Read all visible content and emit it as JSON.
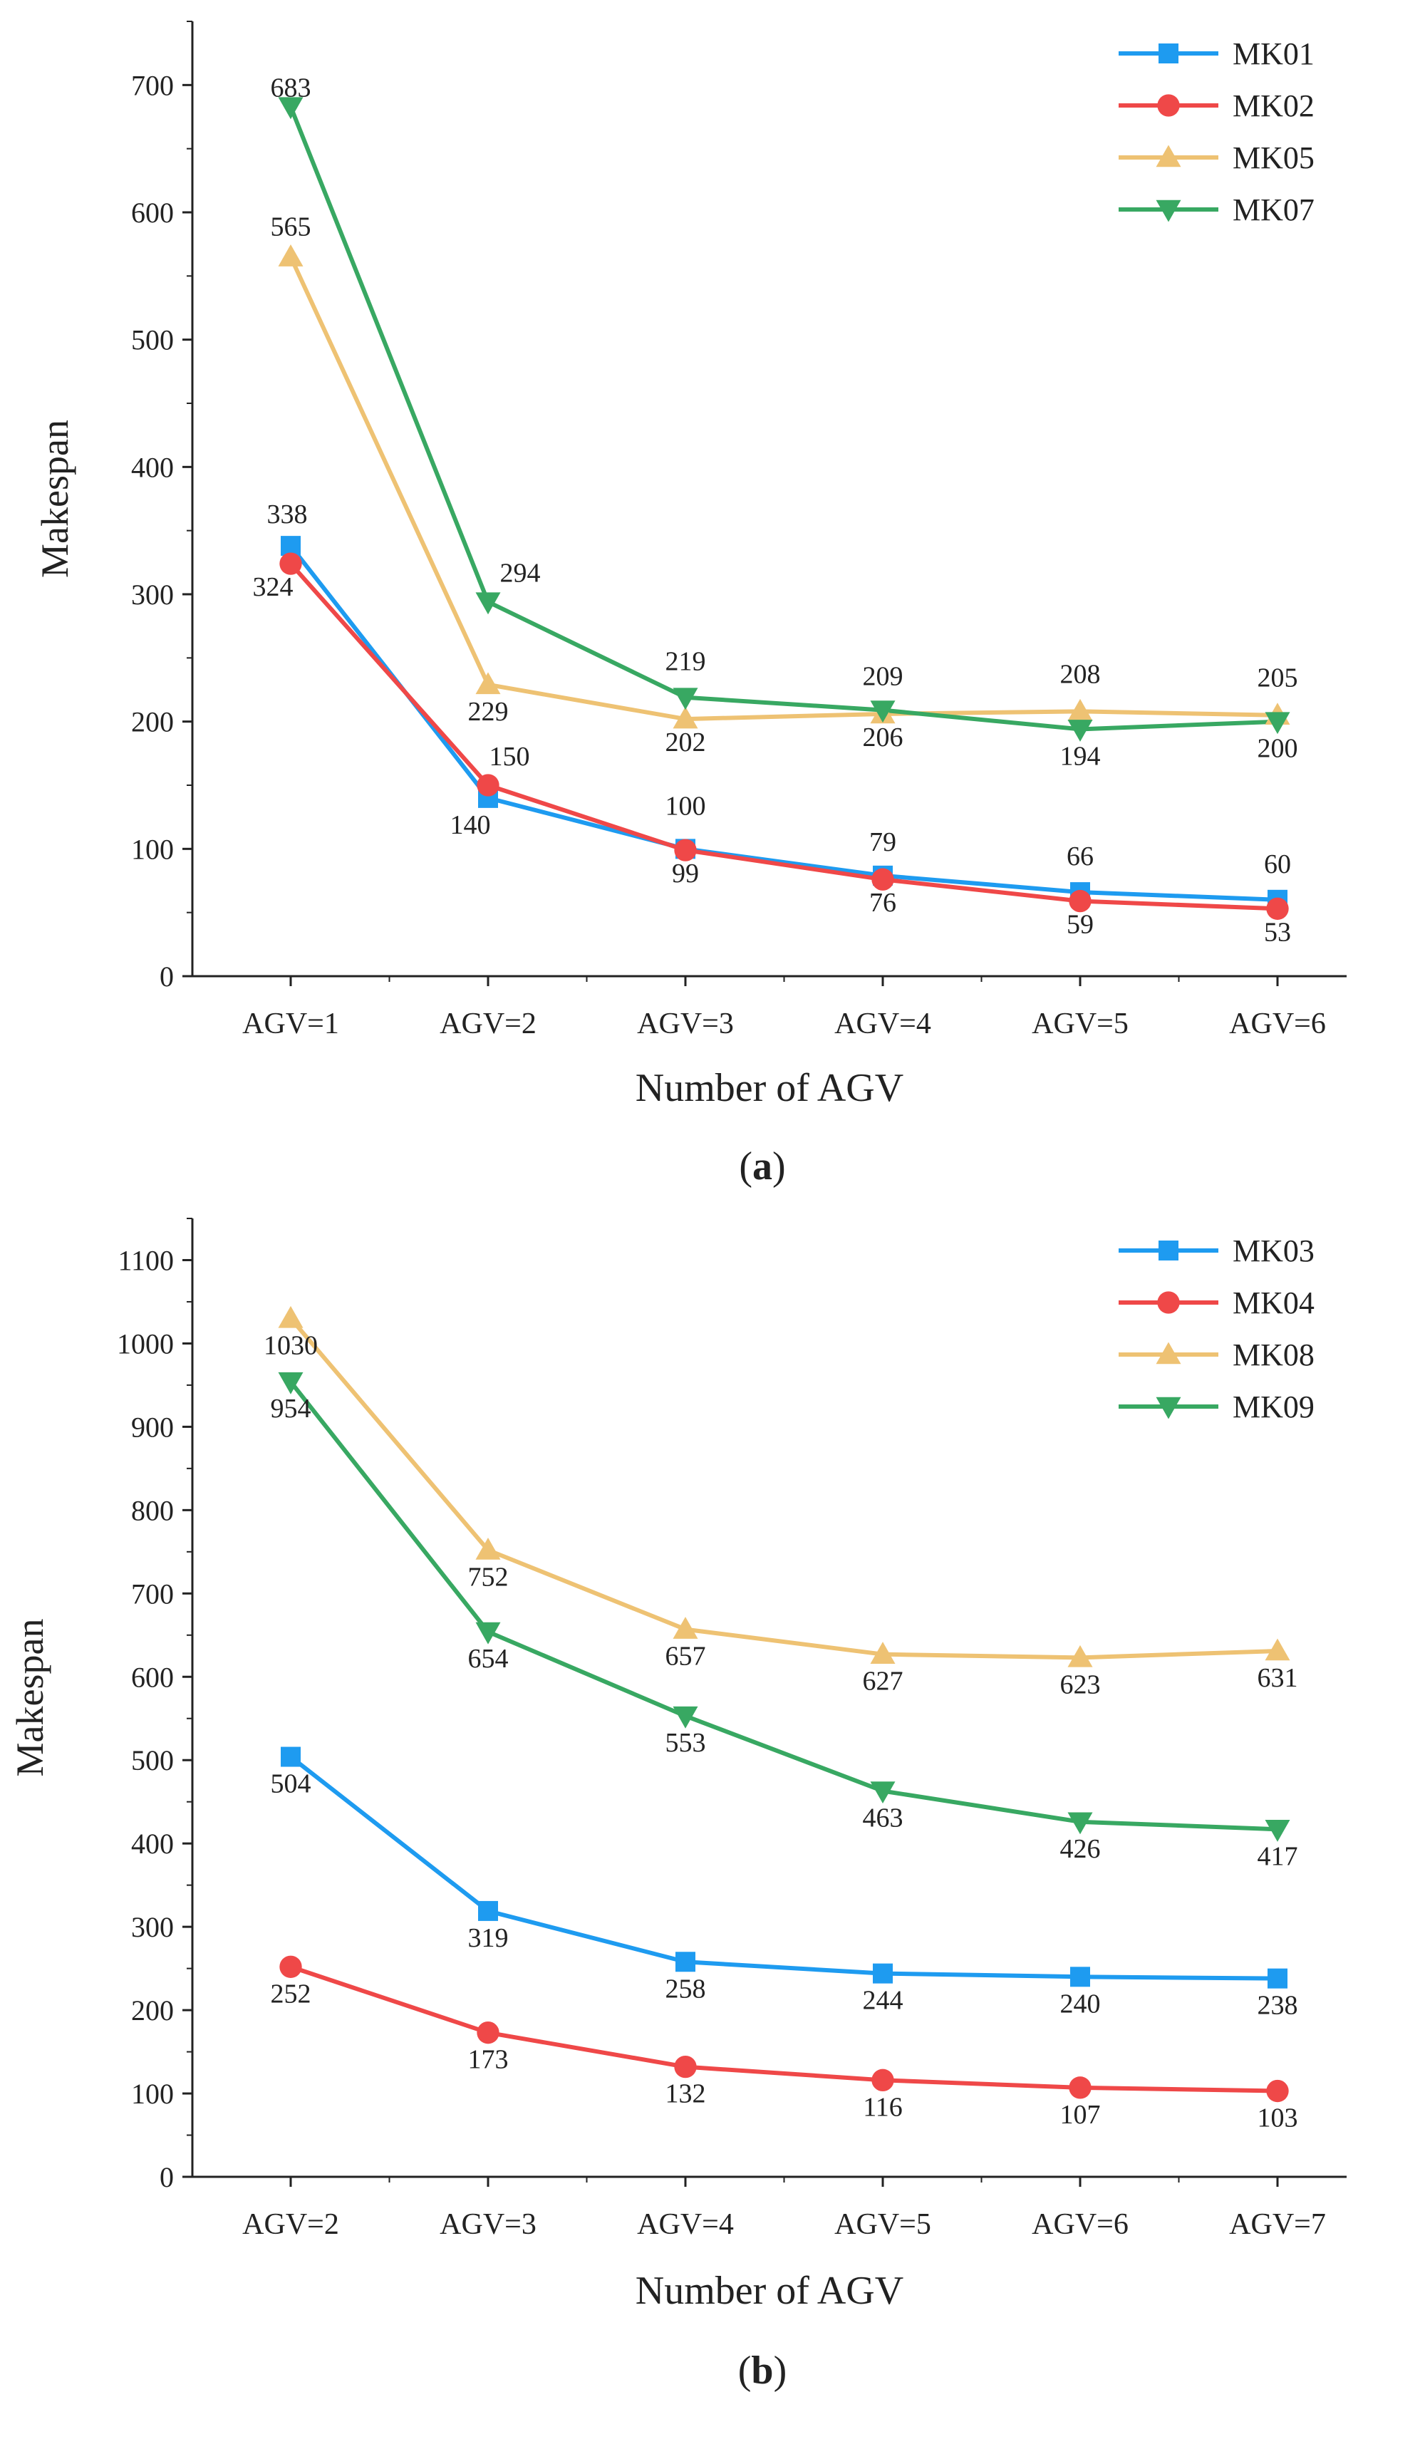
{
  "chart_data": [
    {
      "type": "line",
      "panel_label": "a",
      "xlabel": "Number of AGV",
      "ylabel": "Makespan",
      "categories": [
        "AGV=1",
        "AGV=2",
        "AGV=3",
        "AGV=4",
        "AGV=5",
        "AGV=6"
      ],
      "ylim": [
        0,
        750
      ],
      "yticks": [
        0,
        100,
        200,
        300,
        400,
        500,
        600,
        700
      ],
      "grid": false,
      "legend_position": "top-right",
      "series": [
        {
          "name": "MK01",
          "color": "#1e9bf0",
          "marker": "square",
          "values": [
            338,
            140,
            100,
            79,
            66,
            60
          ]
        },
        {
          "name": "MK02",
          "color": "#ef4848",
          "marker": "circle",
          "values": [
            324,
            150,
            99,
            76,
            59,
            53
          ]
        },
        {
          "name": "MK05",
          "color": "#eec273",
          "marker": "triangle-up",
          "values": [
            565,
            229,
            202,
            206,
            208,
            205
          ]
        },
        {
          "name": "MK07",
          "color": "#38a862",
          "marker": "triangle-down",
          "values": [
            683,
            294,
            219,
            209,
            194,
            200
          ]
        }
      ]
    },
    {
      "type": "line",
      "panel_label": "b",
      "xlabel": "Number of AGV",
      "ylabel": "Makespan",
      "categories": [
        "AGV=2",
        "AGV=3",
        "AGV=4",
        "AGV=5",
        "AGV=6",
        "AGV=7"
      ],
      "ylim": [
        0,
        1150
      ],
      "yticks": [
        0,
        100,
        200,
        300,
        400,
        500,
        600,
        700,
        800,
        900,
        1000,
        1100
      ],
      "grid": false,
      "legend_position": "top-right",
      "series": [
        {
          "name": "MK03",
          "color": "#1e9bf0",
          "marker": "square",
          "values": [
            504,
            319,
            258,
            244,
            240,
            238
          ]
        },
        {
          "name": "MK04",
          "color": "#ef4848",
          "marker": "circle",
          "values": [
            252,
            173,
            132,
            116,
            107,
            103
          ]
        },
        {
          "name": "MK08",
          "color": "#eec273",
          "marker": "triangle-up",
          "values": [
            1030,
            752,
            657,
            627,
            623,
            631
          ]
        },
        {
          "name": "MK09",
          "color": "#38a862",
          "marker": "triangle-down",
          "values": [
            954,
            654,
            553,
            463,
            426,
            417
          ]
        }
      ]
    }
  ]
}
